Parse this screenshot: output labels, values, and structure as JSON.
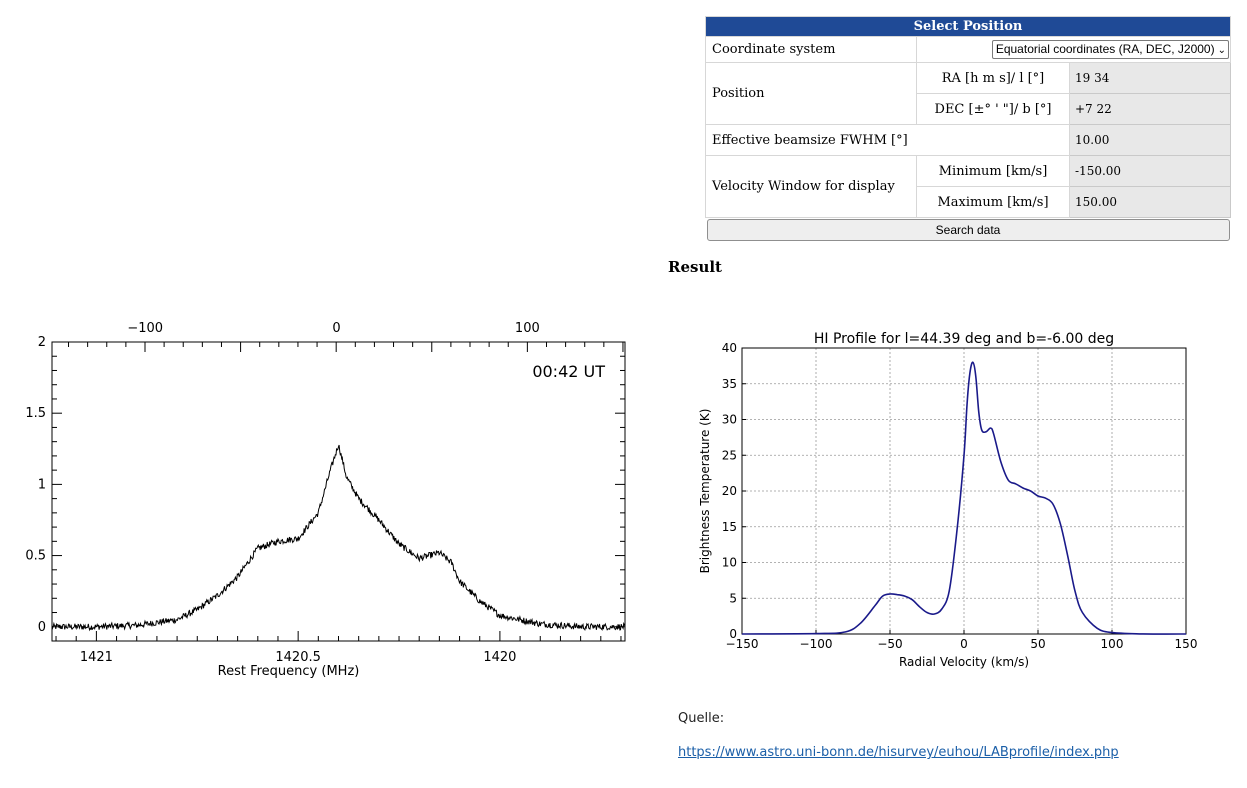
{
  "form": {
    "title": "Select Position",
    "coord_label": "Coordinate system",
    "coord_value": "Equatorial coordinates (RA, DEC, J2000)",
    "position_label": "Position",
    "ra_label": "RA [h m s]/ l [°]",
    "ra_value": "19 34",
    "dec_label": "DEC [±° ' \"]/ b [°]",
    "dec_value": "+7 22",
    "beam_label": "Effective beamsize FWHM [°]",
    "beam_value": "10.00",
    "vel_label": "Velocity Window for display",
    "min_label": "Minimum [km/s]",
    "min_value": "-150.00",
    "max_label": "Maximum [km/s]",
    "max_value": "150.00",
    "search_button": "Search data"
  },
  "result_heading": "Result",
  "source": {
    "label": "Quelle:",
    "url": "https://www.astro.uni-bonn.de/hisurvey/euhou/LABprofile/index.php"
  },
  "colors": {
    "form_header": "#1f4a96",
    "profile_line": "#1a1a8a",
    "link": "#1b5fa8"
  },
  "chart_data": [
    {
      "type": "line",
      "annotation": "00:42 UT",
      "xlabel": "Rest Frequency (MHz)",
      "ylabel": "",
      "xlim": [
        1421.11,
        1419.69
      ],
      "ylim": [
        -0.1,
        2.0
      ],
      "x_ticks": [
        "1421",
        "1420.5",
        "1420"
      ],
      "x_tick_values": [
        1421.0,
        1420.5,
        1420.0
      ],
      "top_ticks": [
        "−100",
        "0",
        "100"
      ],
      "top_tick_values": [
        1420.879,
        1420.405,
        1419.932
      ],
      "y_ticks": [
        "0",
        "0.5",
        "1",
        "1.5",
        "2"
      ],
      "y_tick_values": [
        0,
        0.5,
        1.0,
        1.5,
        2.0
      ],
      "x": [
        1421.11,
        1421.0,
        1420.9,
        1420.8,
        1420.75,
        1420.7,
        1420.65,
        1420.6,
        1420.55,
        1420.5,
        1420.45,
        1420.42,
        1420.4,
        1420.38,
        1420.35,
        1420.3,
        1420.25,
        1420.2,
        1420.15,
        1420.12,
        1420.1,
        1420.05,
        1420.0,
        1419.9,
        1419.8,
        1419.69
      ],
      "y": [
        0.0,
        0.0,
        0.01,
        0.05,
        0.12,
        0.22,
        0.35,
        0.55,
        0.6,
        0.62,
        0.8,
        1.1,
        1.28,
        1.05,
        0.9,
        0.75,
        0.58,
        0.48,
        0.52,
        0.45,
        0.32,
        0.18,
        0.08,
        0.02,
        0.0,
        0.0
      ],
      "grid": false
    },
    {
      "type": "line",
      "title": "HI Profile for l=44.39 deg and b=-6.00 deg",
      "xlabel": "Radial Velocity (km/s)",
      "ylabel": "Brightness Temperature (K)",
      "xlim": [
        -150,
        150
      ],
      "ylim": [
        0,
        40
      ],
      "x_ticks": [
        "−150",
        "−100",
        "−50",
        "0",
        "50",
        "100",
        "150"
      ],
      "x_tick_values": [
        -150,
        -100,
        -50,
        0,
        50,
        100,
        150
      ],
      "y_ticks": [
        "0",
        "5",
        "10",
        "15",
        "20",
        "25",
        "30",
        "35",
        "40"
      ],
      "y_tick_values": [
        0,
        5,
        10,
        15,
        20,
        25,
        30,
        35,
        40
      ],
      "x": [
        -150,
        -100,
        -80,
        -70,
        -60,
        -55,
        -50,
        -45,
        -40,
        -35,
        -30,
        -25,
        -20,
        -15,
        -10,
        -5,
        0,
        2,
        4,
        6,
        8,
        10,
        12,
        15,
        18,
        20,
        25,
        30,
        35,
        40,
        45,
        50,
        55,
        60,
        65,
        70,
        75,
        80,
        90,
        100,
        120,
        150
      ],
      "y": [
        0,
        0.05,
        0.3,
        1.5,
        4.0,
        5.3,
        5.6,
        5.5,
        5.3,
        4.8,
        3.8,
        3.0,
        2.8,
        3.5,
        6.0,
        14.0,
        25.0,
        32.0,
        36.5,
        38.0,
        36.0,
        31.0,
        28.5,
        28.3,
        28.8,
        28.0,
        24.0,
        21.5,
        21.0,
        20.4,
        20.0,
        19.3,
        19.0,
        18.2,
        15.5,
        11.0,
        6.0,
        3.0,
        0.8,
        0.2,
        0.02,
        0
      ]
    }
  ]
}
